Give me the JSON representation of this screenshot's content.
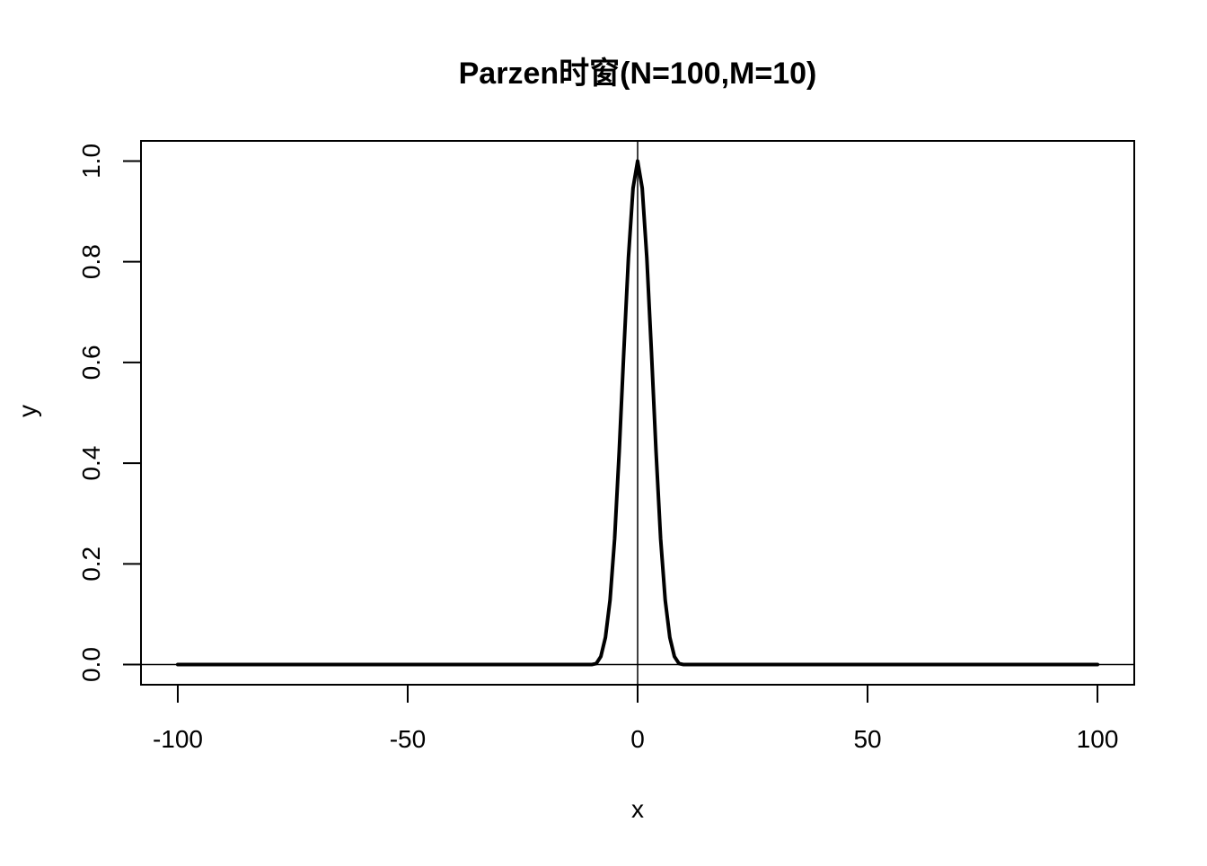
{
  "chart_data": {
    "type": "line",
    "title": "Parzen时窗(N=100,M=10)",
    "xlabel": "x",
    "ylabel": "y",
    "xlim": [
      -108,
      108
    ],
    "ylim": [
      -0.04,
      1.04
    ],
    "x_ticks": [
      -100,
      -50,
      0,
      50,
      100
    ],
    "x_tick_labels": [
      "-100",
      "-50",
      "0",
      "50",
      "100"
    ],
    "y_ticks": [
      0.0,
      0.2,
      0.4,
      0.6,
      0.8,
      1.0
    ],
    "y_tick_labels": [
      "0.0",
      "0.2",
      "0.4",
      "0.6",
      "0.8",
      "1.0"
    ],
    "reference_lines": {
      "horizontal_y": 0,
      "vertical_x": 0
    },
    "grid": false,
    "series": [
      {
        "window": "Parzen",
        "N": 100,
        "M": 10,
        "x": [
          -100,
          -11,
          -10,
          -9,
          -8,
          -7,
          -6,
          -5,
          -4,
          -3,
          -2,
          -1,
          0,
          1,
          2,
          3,
          4,
          5,
          6,
          7,
          8,
          9,
          10,
          11,
          100
        ],
        "y": [
          0,
          0,
          0,
          0.002,
          0.016,
          0.054,
          0.128,
          0.25,
          0.424,
          0.622,
          0.808,
          0.946,
          1.0,
          0.946,
          0.808,
          0.622,
          0.424,
          0.25,
          0.128,
          0.054,
          0.016,
          0.002,
          0,
          0,
          0
        ],
        "color": "#000000"
      }
    ]
  }
}
